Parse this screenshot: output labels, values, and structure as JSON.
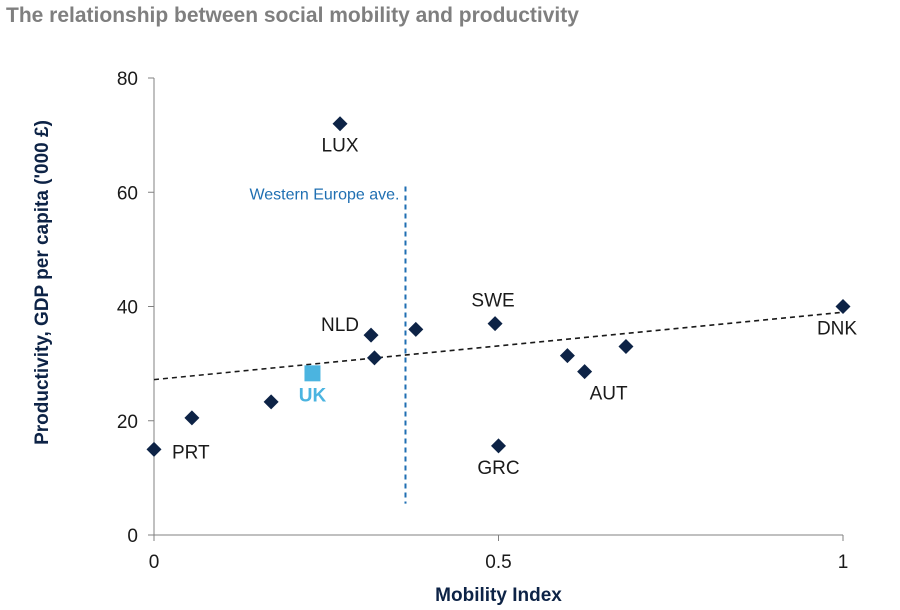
{
  "chart_data": {
    "type": "scatter",
    "title": "The relationship between social mobility and productivity",
    "xlabel": "Mobility Index",
    "ylabel": "Productivity, GDP per capita ('000 £)",
    "xlim": [
      0,
      1
    ],
    "ylim": [
      0,
      80
    ],
    "x_ticks": [
      0,
      0.5,
      1
    ],
    "y_ticks": [
      0,
      20,
      40,
      60,
      80
    ],
    "grid": false,
    "points": [
      {
        "label": "PRT",
        "x": 0.0,
        "y": 15,
        "highlight": false,
        "label_pos": "right"
      },
      {
        "label": "",
        "x": 0.055,
        "y": 20.5,
        "highlight": false
      },
      {
        "label": "",
        "x": 0.17,
        "y": 23.3,
        "highlight": false
      },
      {
        "label": "UK",
        "x": 0.23,
        "y": 28.3,
        "highlight": true,
        "label_pos": "below"
      },
      {
        "label": "LUX",
        "x": 0.27,
        "y": 72,
        "highlight": false,
        "label_pos": "below"
      },
      {
        "label": "NLD",
        "x": 0.315,
        "y": 35,
        "highlight": false,
        "label_pos": "left"
      },
      {
        "label": "",
        "x": 0.32,
        "y": 31,
        "highlight": false
      },
      {
        "label": "",
        "x": 0.38,
        "y": 36,
        "highlight": false
      },
      {
        "label": "SWE",
        "x": 0.495,
        "y": 37,
        "highlight": false,
        "label_pos": "above"
      },
      {
        "label": "GRC",
        "x": 0.5,
        "y": 15.6,
        "highlight": false,
        "label_pos": "below"
      },
      {
        "label": "",
        "x": 0.6,
        "y": 31.4,
        "highlight": false
      },
      {
        "label": "AUT",
        "x": 0.625,
        "y": 28.6,
        "highlight": false,
        "label_pos": "below-right"
      },
      {
        "label": "",
        "x": 0.685,
        "y": 33,
        "highlight": false
      },
      {
        "label": "DNK",
        "x": 1.0,
        "y": 40,
        "highlight": false,
        "label_pos": "below"
      }
    ],
    "trendline": {
      "x": [
        0,
        1
      ],
      "y": [
        27.2,
        39
      ]
    },
    "reference_line": {
      "x": 0.365,
      "y_range": [
        5.5,
        61
      ],
      "label": "Western Europe ave."
    },
    "colors": {
      "marker": "#0d2346",
      "highlight": "#4bb4e0",
      "reference": "#1f6fb2",
      "trend": "#1a1a1a",
      "axis": "#808080",
      "title": "#7f7f7f"
    }
  }
}
